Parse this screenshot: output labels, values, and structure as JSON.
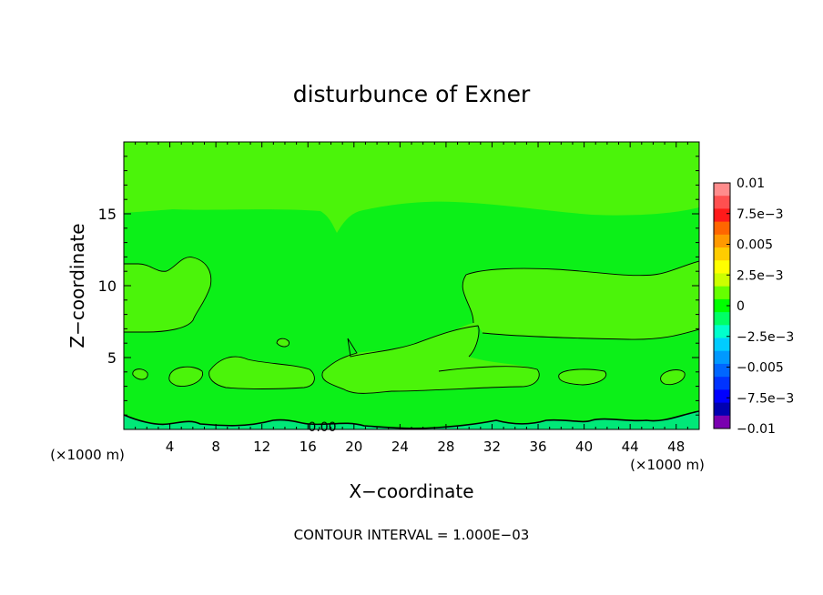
{
  "chart_data": {
    "type": "heatmap",
    "title": "disturbunce of Exner",
    "xlabel": "X−coordinate",
    "ylabel": "Z−coordinate",
    "x_unit_left": "(×1000 m)",
    "x_unit_right": "(×1000 m)",
    "footer": "CONTOUR INTERVAL = 1.000E−03",
    "xlim": [
      0,
      50
    ],
    "ylim": [
      0,
      20
    ],
    "x_ticks": [
      4,
      8,
      12,
      16,
      20,
      24,
      28,
      32,
      36,
      40,
      44,
      48
    ],
    "x_tick_labels": [
      "4",
      "8",
      "12",
      "16",
      "20",
      "24",
      "28",
      "32",
      "36",
      "40",
      "44",
      "48"
    ],
    "y_ticks": [
      5,
      10,
      15
    ],
    "y_tick_labels": [
      "5",
      "10",
      "15"
    ],
    "zero_contour_label": "0.00",
    "colorbar": {
      "range": [
        -0.01,
        0.01
      ],
      "labels": [
        "0.01",
        "7.5e−3",
        "0.005",
        "2.5e−3",
        "0",
        "−2.5e−3",
        "−0.005",
        "−7.5e−3",
        "−0.01"
      ],
      "colors": [
        "#ff8c8c",
        "#ff5050",
        "#ff1a1a",
        "#ff6600",
        "#ff9900",
        "#ffcc00",
        "#ffff00",
        "#ccff00",
        "#66ff00",
        "#00ff00",
        "#00ff66",
        "#00ffcc",
        "#00ccff",
        "#0099ff",
        "#0066ff",
        "#0033ff",
        "#0000ff",
        "#0000b0",
        "#7a00b0"
      ]
    },
    "levels": {
      "background": "0 to 1.0E-03",
      "background_color": "#0cf018",
      "regions": "1.0E-03 to 2.0E-03",
      "regions_color": "#4bf40a",
      "bottom": "-1.0E-03 to 0",
      "bottom_color": "#00e878"
    }
  }
}
